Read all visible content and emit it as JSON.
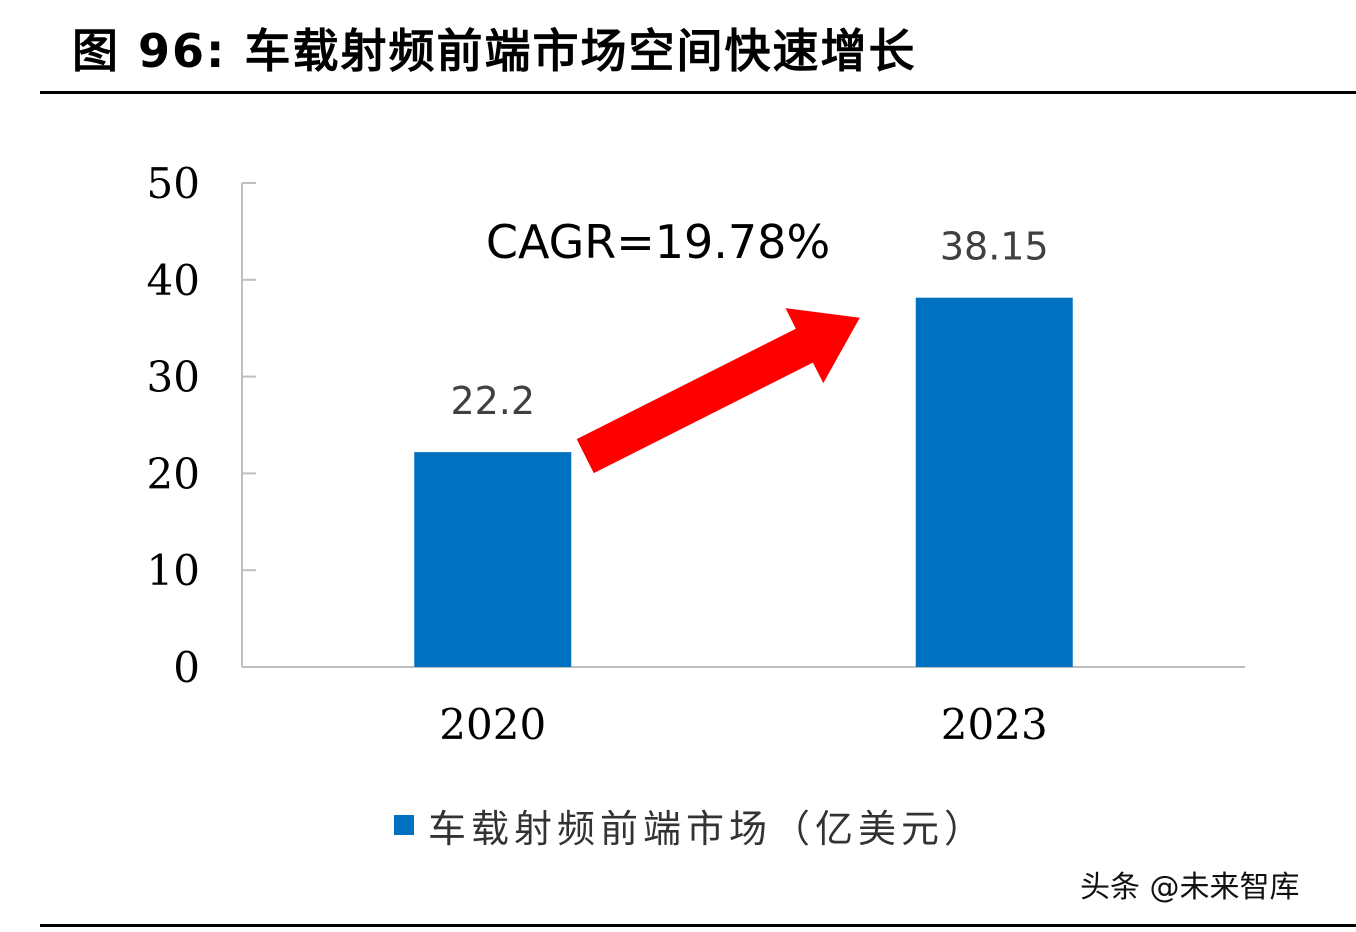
{
  "figure_title": "图 96:  车载射频前端市场空间快速增长",
  "watermark": "头条 @未来智库",
  "chart_data": {
    "type": "bar",
    "categories": [
      "2020",
      "2023"
    ],
    "series": [
      {
        "name": "车载射频前端市场（亿美元）",
        "values": [
          22.2,
          38.15
        ],
        "color": "#0070C0"
      }
    ],
    "data_labels": [
      "22.2",
      "38.15"
    ],
    "ylim": [
      0,
      50
    ],
    "yticks": [
      0,
      10,
      20,
      30,
      40,
      50
    ],
    "title": "",
    "xlabel": "",
    "ylabel": "",
    "grid": false,
    "legend_position": "bottom",
    "annotation": {
      "text": "CAGR=19.78%",
      "arrow_color": "#FF0000"
    }
  }
}
